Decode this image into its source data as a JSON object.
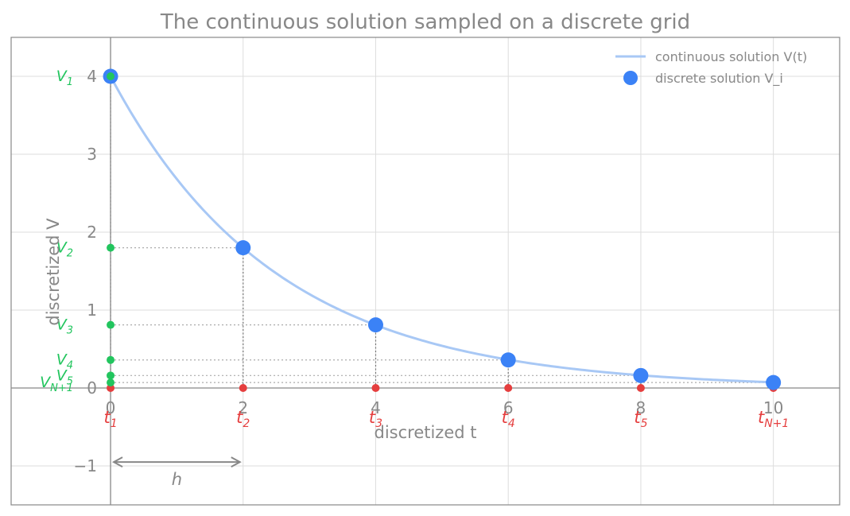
{
  "chart_data": {
    "type": "line",
    "title": "The continuous solution sampled on a discrete grid",
    "xlabel": "discretized  t",
    "ylabel": "discretized  V",
    "xlim": [
      -1.5,
      11.0
    ],
    "ylim": [
      -1.5,
      4.5
    ],
    "xticks": [
      0,
      2,
      4,
      6,
      8,
      10
    ],
    "yticks": [
      -1,
      0,
      1,
      2,
      3,
      4
    ],
    "xtick_labels": [
      "0",
      "2",
      "4",
      "6",
      "8",
      "10"
    ],
    "ytick_labels": [
      "−1",
      "0",
      "1",
      "2",
      "3",
      "4"
    ],
    "grid": true,
    "legend_position": "top-right",
    "continuous": {
      "name": "continuous solution  V(t)",
      "formula": "V(t) = 4 exp(-0.4 t)",
      "V0": 4,
      "rate": 0.4,
      "t_range": [
        0,
        10
      ],
      "color": "#a8c8f5"
    },
    "discrete": {
      "name": "discrete solution  V_i",
      "t": [
        0,
        2,
        4,
        6,
        8,
        10
      ],
      "V": [
        4.0,
        1.8,
        0.81,
        0.36,
        0.16,
        0.07
      ],
      "color": "#3b82f6"
    },
    "t_labels": {
      "base": "t",
      "subscripts": [
        "1",
        "2",
        "3",
        "4",
        "5",
        "N+1"
      ],
      "color": "#e53e3e"
    },
    "v_labels": {
      "base": "V",
      "subscripts": [
        "1",
        "2",
        "3",
        "4",
        "5",
        "N+1"
      ],
      "color": "#22c55e"
    },
    "step_annotation": {
      "label": "h",
      "from_t": 0,
      "to_t": 2,
      "y": -0.95
    }
  }
}
